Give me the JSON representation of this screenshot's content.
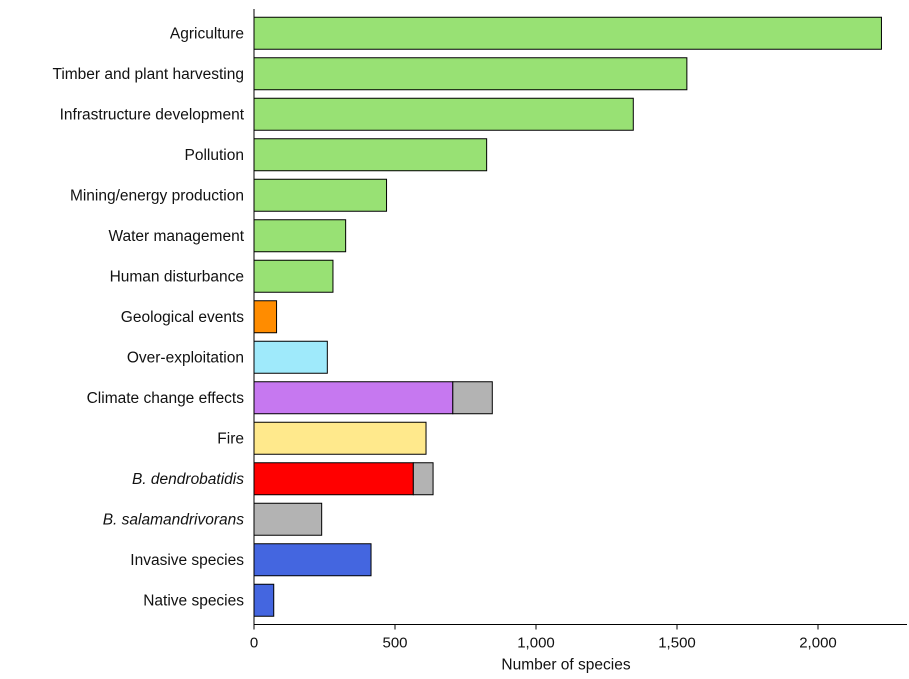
{
  "chart_data": {
    "type": "bar",
    "orientation": "horizontal",
    "stacked": true,
    "title": "",
    "xlabel": "Number of species",
    "ylabel": "",
    "xlim": [
      0,
      2400
    ],
    "xticks": [
      0,
      500,
      1000,
      1500,
      2000
    ],
    "xtick_labels": [
      "0",
      "500",
      "1,000",
      "1,500",
      "2,000"
    ],
    "grid": false,
    "categories": [
      "Agriculture",
      "Timber and plant harvesting",
      "Infrastructure development",
      "Pollution",
      "Mining/energy production",
      "Water management",
      "Human disturbance",
      "Geological events",
      "Over-exploitation",
      "Climate change effects",
      "Fire",
      "B. dendrobatidis",
      "B. salamandrivorans",
      "Invasive species",
      "Native species"
    ],
    "italic_categories": [
      "B. dendrobatidis",
      "B. salamandrivorans"
    ],
    "series": [
      {
        "values": [
          2225,
          1535,
          1345,
          825,
          470,
          325,
          280,
          80,
          260,
          705,
          610,
          565,
          0,
          415,
          70
        ],
        "colors": [
          "#98E174",
          "#98E174",
          "#98E174",
          "#98E174",
          "#98E174",
          "#98E174",
          "#98E174",
          "#FF8C00",
          "#9FEAFB",
          "#C678F0",
          "#FFE98C",
          "#FF0000",
          "#B3B3B3",
          "#4466E0",
          "#4466E0"
        ]
      },
      {
        "values": [
          0,
          0,
          0,
          0,
          0,
          0,
          0,
          0,
          0,
          140,
          0,
          70,
          240,
          0,
          0
        ],
        "colors": [
          "#B3B3B3",
          "#B3B3B3",
          "#B3B3B3",
          "#B3B3B3",
          "#B3B3B3",
          "#B3B3B3",
          "#B3B3B3",
          "#B3B3B3",
          "#B3B3B3",
          "#B3B3B3",
          "#B3B3B3",
          "#B3B3B3",
          "#B3B3B3",
          "#B3B3B3",
          "#B3B3B3"
        ]
      }
    ]
  }
}
